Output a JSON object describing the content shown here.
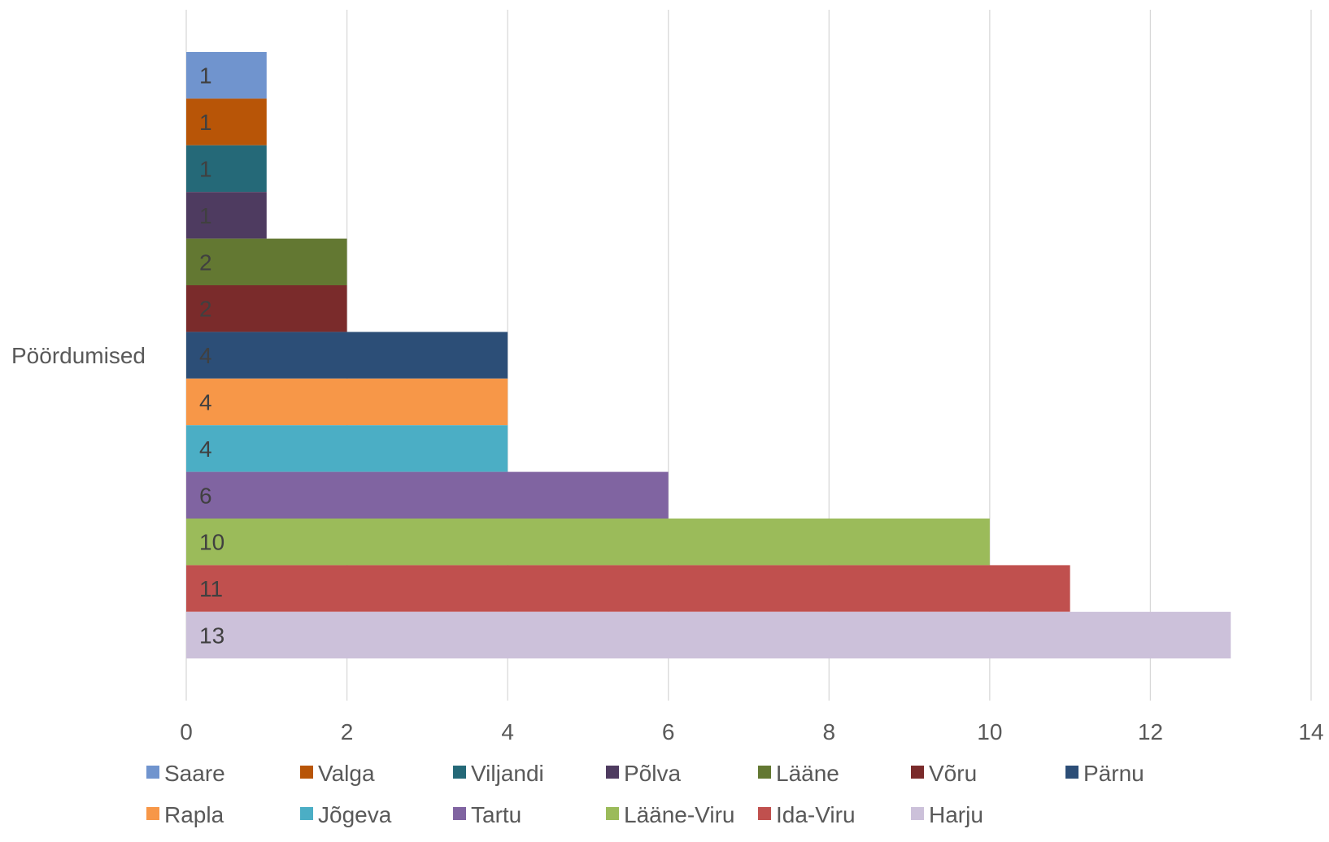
{
  "chart_data": {
    "type": "bar",
    "orientation": "horizontal",
    "categories": [
      "Pöördumised"
    ],
    "series": [
      {
        "name": "Saare",
        "values": [
          1
        ],
        "color": "#7094CE"
      },
      {
        "name": "Valga",
        "values": [
          1
        ],
        "color": "#B85507"
      },
      {
        "name": "Viljandi",
        "values": [
          1
        ],
        "color": "#256978"
      },
      {
        "name": "Põlva",
        "values": [
          1
        ],
        "color": "#4E3B60"
      },
      {
        "name": "Lääne",
        "values": [
          2
        ],
        "color": "#637832"
      },
      {
        "name": "Võru",
        "values": [
          2
        ],
        "color": "#7A2B2B"
      },
      {
        "name": "Pärnu",
        "values": [
          4
        ],
        "color": "#2C4E77"
      },
      {
        "name": "Rapla",
        "values": [
          4
        ],
        "color": "#F79748"
      },
      {
        "name": "Jõgeva",
        "values": [
          4
        ],
        "color": "#4BAEC5"
      },
      {
        "name": "Tartu",
        "values": [
          6
        ],
        "color": "#8064A1"
      },
      {
        "name": "Lääne-Viru",
        "values": [
          10
        ],
        "color": "#9BBB5A"
      },
      {
        "name": "Ida-Viru",
        "values": [
          11
        ],
        "color": "#C0504E"
      },
      {
        "name": "Harju",
        "values": [
          13
        ],
        "color": "#CCC1DA"
      }
    ],
    "x_ticks": [
      "0",
      "2",
      "4",
      "6",
      "8",
      "10",
      "12",
      "14"
    ],
    "xlim": [
      0,
      14
    ],
    "grid": true,
    "legend_position": "bottom",
    "data_labels": true,
    "title": "",
    "xlabel": "",
    "ylabel": ""
  }
}
